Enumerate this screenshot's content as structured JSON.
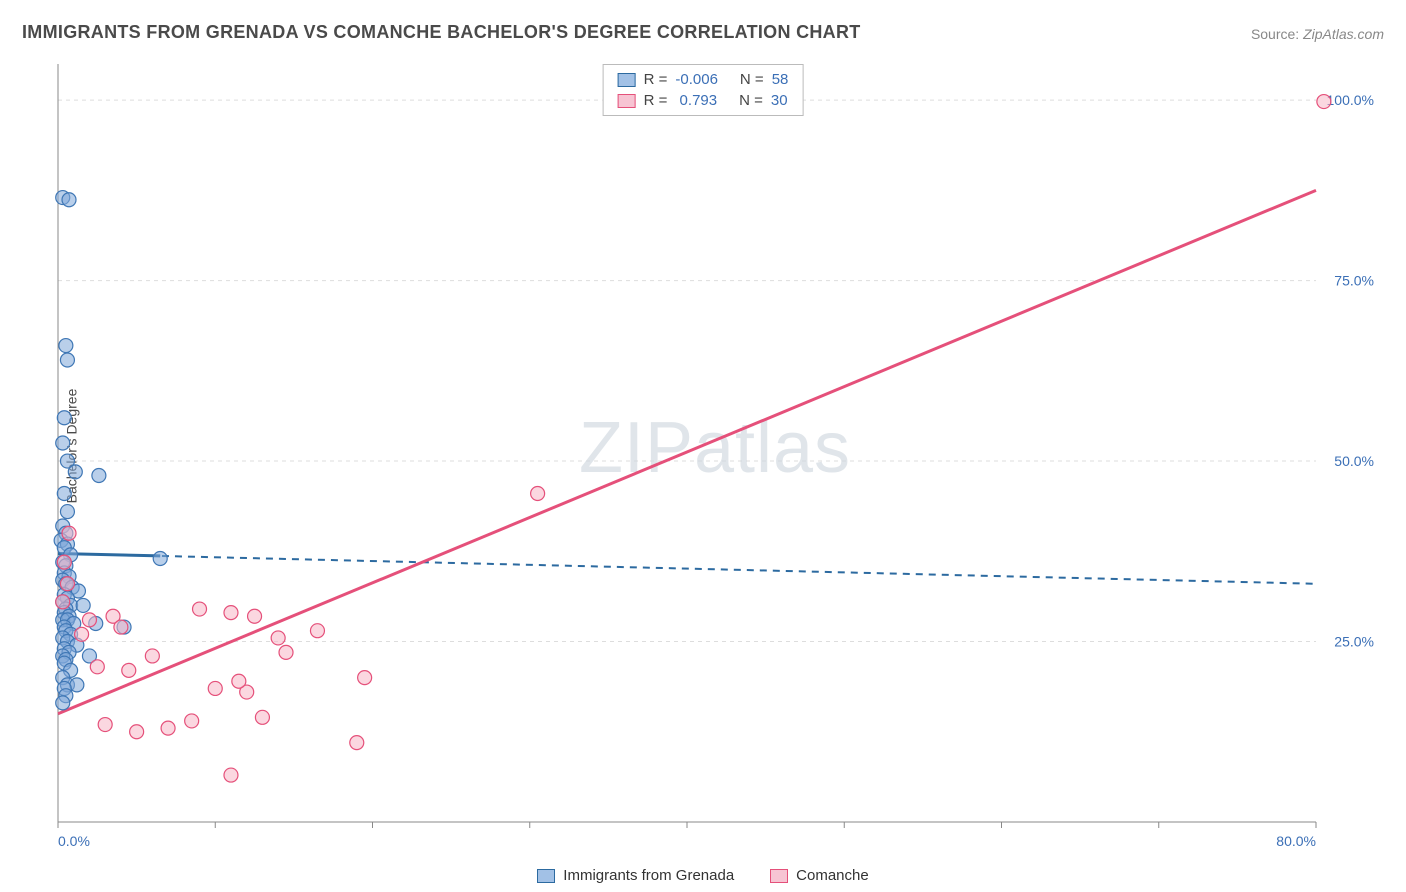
{
  "title": "IMMIGRANTS FROM GRENADA VS COMANCHE BACHELOR'S DEGREE CORRELATION CHART",
  "source_label": "Source:",
  "source_value": "ZipAtlas.com",
  "ylabel": "Bachelor's Degree",
  "watermark": "ZIPatlas",
  "chart": {
    "type": "scatter",
    "xlim": [
      0,
      80
    ],
    "ylim": [
      0,
      105
    ],
    "x_ticks": [
      0,
      10,
      20,
      30,
      40,
      50,
      60,
      70,
      80
    ],
    "x_tick_labels": {
      "0": "0.0%",
      "80": "80.0%"
    },
    "y_ticks": [
      25,
      50,
      75,
      100
    ],
    "y_tick_labels": {
      "25": "25.0%",
      "50": "50.0%",
      "75": "75.0%",
      "100": "100.0%"
    },
    "background_color": "#ffffff",
    "grid_color": "#dddddd",
    "axis_color": "#888888",
    "marker_radius": 7,
    "colors": {
      "series_a_fill": "#7fa8d9",
      "series_a_stroke": "#3f77b5",
      "series_a_trend": "#2c6aa0",
      "series_b_fill": "#f7b6c7",
      "series_b_stroke": "#e5507a",
      "series_b_trend": "#e5507a",
      "tick_label": "#3b6fb6"
    },
    "series": [
      {
        "name": "Immigrants from Grenada",
        "key": "a",
        "r_label": "R =",
        "r_value": "-0.006",
        "n_label": "N =",
        "n_value": "58",
        "trend": {
          "x1": 0,
          "y1": 37.2,
          "x2": 80,
          "y2": 33.0,
          "dashed": true,
          "solid_until_x": 6.5
        },
        "points": [
          [
            0.3,
            86.5
          ],
          [
            0.7,
            86.2
          ],
          [
            0.5,
            66.0
          ],
          [
            0.6,
            64.0
          ],
          [
            0.4,
            56.0
          ],
          [
            0.3,
            52.5
          ],
          [
            0.6,
            50.0
          ],
          [
            1.1,
            48.5
          ],
          [
            2.6,
            48.0
          ],
          [
            0.4,
            45.5
          ],
          [
            0.6,
            43.0
          ],
          [
            0.3,
            41.0
          ],
          [
            0.5,
            40.0
          ],
          [
            0.2,
            39.0
          ],
          [
            0.6,
            38.5
          ],
          [
            0.4,
            38.0
          ],
          [
            0.8,
            37.0
          ],
          [
            0.3,
            36.0
          ],
          [
            0.5,
            35.5
          ],
          [
            6.5,
            36.5
          ],
          [
            0.4,
            34.5
          ],
          [
            0.7,
            34.0
          ],
          [
            0.3,
            33.5
          ],
          [
            0.5,
            33.0
          ],
          [
            0.9,
            32.5
          ],
          [
            1.3,
            32.0
          ],
          [
            0.4,
            31.5
          ],
          [
            0.6,
            31.0
          ],
          [
            0.3,
            30.5
          ],
          [
            0.8,
            30.0
          ],
          [
            1.6,
            30.0
          ],
          [
            0.5,
            29.5
          ],
          [
            0.4,
            29.0
          ],
          [
            0.7,
            28.5
          ],
          [
            0.3,
            28.0
          ],
          [
            0.6,
            28.0
          ],
          [
            1.0,
            27.5
          ],
          [
            0.4,
            27.0
          ],
          [
            2.4,
            27.5
          ],
          [
            4.2,
            27.0
          ],
          [
            0.5,
            26.5
          ],
          [
            0.8,
            26.0
          ],
          [
            0.3,
            25.5
          ],
          [
            0.6,
            25.0
          ],
          [
            1.2,
            24.5
          ],
          [
            0.4,
            24.0
          ],
          [
            0.7,
            23.5
          ],
          [
            0.3,
            23.0
          ],
          [
            2.0,
            23.0
          ],
          [
            0.5,
            22.5
          ],
          [
            0.4,
            22.0
          ],
          [
            0.8,
            21.0
          ],
          [
            0.3,
            20.0
          ],
          [
            0.6,
            19.0
          ],
          [
            1.2,
            19.0
          ],
          [
            0.4,
            18.5
          ],
          [
            0.5,
            17.5
          ],
          [
            0.3,
            16.5
          ]
        ]
      },
      {
        "name": "Comanche",
        "key": "b",
        "r_label": "R =",
        "r_value": "0.793",
        "n_label": "N =",
        "n_value": "30",
        "trend": {
          "x1": 0,
          "y1": 15.0,
          "x2": 80,
          "y2": 87.5,
          "dashed": false
        },
        "points": [
          [
            80.5,
            99.8
          ],
          [
            30.5,
            45.5
          ],
          [
            0.4,
            36.0
          ],
          [
            0.6,
            33.0
          ],
          [
            0.3,
            30.5
          ],
          [
            0.7,
            40.0
          ],
          [
            2.0,
            28.0
          ],
          [
            3.5,
            28.5
          ],
          [
            4.0,
            27.0
          ],
          [
            9.0,
            29.5
          ],
          [
            11.0,
            29.0
          ],
          [
            12.5,
            28.5
          ],
          [
            14.0,
            25.5
          ],
          [
            2.5,
            21.5
          ],
          [
            4.5,
            21.0
          ],
          [
            6.0,
            23.0
          ],
          [
            10.0,
            18.5
          ],
          [
            12.0,
            18.0
          ],
          [
            14.5,
            23.5
          ],
          [
            16.5,
            26.5
          ],
          [
            3.0,
            13.5
          ],
          [
            5.0,
            12.5
          ],
          [
            7.0,
            13.0
          ],
          [
            8.5,
            14.0
          ],
          [
            11.5,
            19.5
          ],
          [
            13.0,
            14.5
          ],
          [
            19.5,
            20.0
          ],
          [
            19.0,
            11.0
          ],
          [
            1.5,
            26.0
          ],
          [
            11.0,
            6.5
          ]
        ]
      }
    ]
  },
  "legend_box": {
    "r_prefix": "R = ",
    "n_prefix": "N = "
  },
  "bottom_legend": {
    "a": "Immigrants from Grenada",
    "b": "Comanche"
  }
}
